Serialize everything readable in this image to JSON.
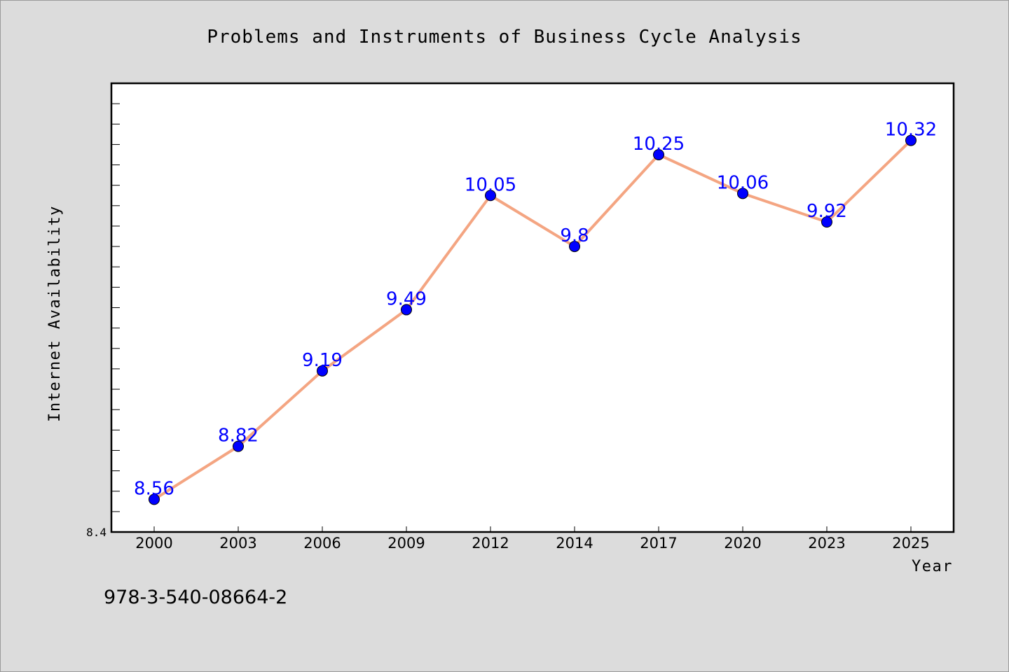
{
  "chart_data": {
    "type": "line",
    "title": "Problems and Instruments of Business Cycle Analysis",
    "xlabel": "Year",
    "ylabel": "Internet Availability",
    "categories": [
      "2000",
      "2003",
      "2006",
      "2009",
      "2012",
      "2014",
      "2017",
      "2020",
      "2023",
      "2025"
    ],
    "values": [
      8.56,
      8.82,
      9.19,
      9.49,
      10.05,
      9.8,
      10.25,
      10.06,
      9.92,
      10.32
    ],
    "data_labels": [
      "8.56",
      "8.82",
      "9.19",
      "9.49",
      "10.05",
      "9.8",
      "10.25",
      "10.06",
      "9.92",
      "10.32"
    ],
    "ylim": [
      8.4,
      10.6
    ],
    "y_tick_labels": [
      "8.4"
    ],
    "grid": false,
    "line_color": "#f4a582",
    "marker_color": "#0000ff",
    "label_color": "#0000ff",
    "plot_background": "#ffffff",
    "page_background": "#dcdcdc"
  },
  "footnote": "978-3-540-08664-2"
}
